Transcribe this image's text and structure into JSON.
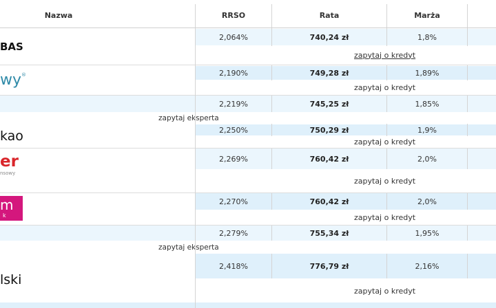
{
  "header": {
    "name": "Nazwa",
    "rrso": "RRSO",
    "rata": "Rata",
    "marza": "Marża"
  },
  "rows": [
    {
      "logo": "BAS",
      "rrso": "2,064%",
      "rata": "740,24 zł",
      "marza": "1,8%",
      "action": "zapytaj o kredyt"
    },
    {
      "logo": "wy",
      "rrso": "2,190%",
      "rata": "749,28 zł",
      "marza": "1,89%",
      "action": "zapytaj o kredyt"
    },
    {
      "logo": "",
      "rrso": "2,219%",
      "rata": "745,25 zł",
      "marza": "1,85%",
      "action": "zapytaj eksperta"
    },
    {
      "logo": "kao",
      "rrso": "2,250%",
      "rata": "750,29 zł",
      "marza": "1,9%",
      "action": "zapytaj o kredyt"
    },
    {
      "logo": "er",
      "logo_sub": "nsowy",
      "rrso": "2,269%",
      "rata": "760,42 zł",
      "marza": "2,0%",
      "action": "zapytaj o kredyt"
    },
    {
      "logo": "m",
      "logo_sub": "k",
      "rrso": "2,270%",
      "rata": "760,42 zł",
      "marza": "2,0%",
      "action": "zapytaj o kredyt"
    },
    {
      "logo": "",
      "rrso": "2,279%",
      "rata": "755,34 zł",
      "marza": "1,95%",
      "action": "zapytaj eksperta"
    },
    {
      "logo": "lski",
      "rrso": "2,418%",
      "rata": "776,79 zł",
      "marza": "2,16%",
      "action": "zapytaj o kredyt"
    }
  ],
  "colors": {
    "row_highlight": "#dff0fb",
    "row_highlight_light": "#ebf6fd",
    "logo_red": "#d9262b",
    "logo_magenta": "#d4177d",
    "logo_teal": "#2f8aa8"
  }
}
